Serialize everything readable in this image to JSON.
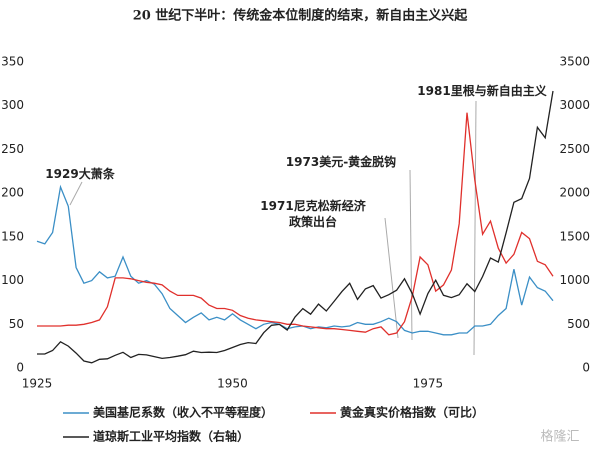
{
  "chart_data": {
    "type": "line",
    "title": "20 世纪下半叶：传统金本位制度的结束，新自由主义兴起",
    "x": [
      1925,
      1926,
      1927,
      1928,
      1929,
      1930,
      1931,
      1932,
      1933,
      1934,
      1935,
      1936,
      1937,
      1938,
      1939,
      1940,
      1941,
      1942,
      1943,
      1944,
      1945,
      1946,
      1947,
      1948,
      1949,
      1950,
      1951,
      1952,
      1953,
      1954,
      1955,
      1956,
      1957,
      1958,
      1959,
      1960,
      1961,
      1962,
      1963,
      1964,
      1965,
      1966,
      1967,
      1968,
      1969,
      1970,
      1971,
      1972,
      1973,
      1974,
      1975,
      1976,
      1977,
      1978,
      1979,
      1980,
      1981,
      1982,
      1983,
      1984,
      1985,
      1986,
      1987,
      1988,
      1989,
      1990,
      1991
    ],
    "xlim": [
      1925,
      1991
    ],
    "xticks": [
      1925,
      1950,
      1975
    ],
    "ylim": [
      0,
      350
    ],
    "yticks": [
      0,
      50,
      100,
      150,
      200,
      250,
      300,
      350
    ],
    "y2lim": [
      0,
      3500
    ],
    "y2ticks": [
      0,
      500,
      1000,
      1500,
      2000,
      2500,
      3000,
      3500
    ],
    "grid": false,
    "series": [
      {
        "name": "美国基尼系数（收入不平等程度）",
        "color": "#3b8fc6",
        "values": [
          145,
          142,
          155,
          207,
          185,
          115,
          97,
          100,
          110,
          103,
          105,
          127,
          105,
          97,
          100,
          96,
          85,
          68,
          60,
          52,
          58,
          63,
          55,
          58,
          55,
          62,
          55,
          50,
          45,
          50,
          52,
          50,
          45,
          47,
          48,
          45,
          47,
          46,
          48,
          47,
          48,
          52,
          50,
          50,
          53,
          57,
          53,
          43,
          40,
          42,
          42,
          40,
          38,
          38,
          40,
          40,
          48,
          48,
          50,
          60,
          68,
          113,
          72,
          104,
          92,
          88,
          77
        ]
      },
      {
        "name": "黄金真实价格指数（可比）",
        "color": "#e0302c",
        "values": [
          48,
          48,
          48,
          48,
          49,
          49,
          50,
          52,
          55,
          70,
          103,
          103,
          102,
          100,
          98,
          97,
          95,
          88,
          83,
          83,
          83,
          80,
          72,
          68,
          68,
          66,
          60,
          57,
          55,
          54,
          53,
          52,
          50,
          50,
          48,
          47,
          46,
          45,
          45,
          44,
          43,
          42,
          41,
          45,
          47,
          38,
          40,
          53,
          82,
          127,
          118,
          88,
          95,
          112,
          165,
          292,
          215,
          153,
          168,
          137,
          120,
          130,
          155,
          148,
          122,
          118,
          105
        ]
      },
      {
        "name": "道琼斯工业平均指数（右轴）",
        "color": "#222222",
        "axis": "y2",
        "values": [
          160,
          160,
          200,
          300,
          250,
          170,
          80,
          60,
          100,
          105,
          145,
          180,
          120,
          155,
          150,
          130,
          110,
          120,
          135,
          152,
          192,
          177,
          181,
          177,
          200,
          235,
          269,
          291,
          280,
          404,
          488,
          499,
          435,
          583,
          679,
          615,
          731,
          652,
          762,
          874,
          969,
          785,
          905,
          943,
          800,
          838,
          890,
          1020,
          850,
          616,
          852,
          1004,
          831,
          805,
          838,
          963,
          875,
          1046,
          1258,
          1211,
          1546,
          1895,
          1938,
          2168,
          2753,
          2633,
          3168
        ]
      }
    ],
    "annotations": [
      "1929大萧条",
      "1971尼克松新经济政策出台",
      "1973美元-黄金脱钩",
      "1981里根与新自由主义"
    ],
    "watermark": "格隆汇"
  }
}
